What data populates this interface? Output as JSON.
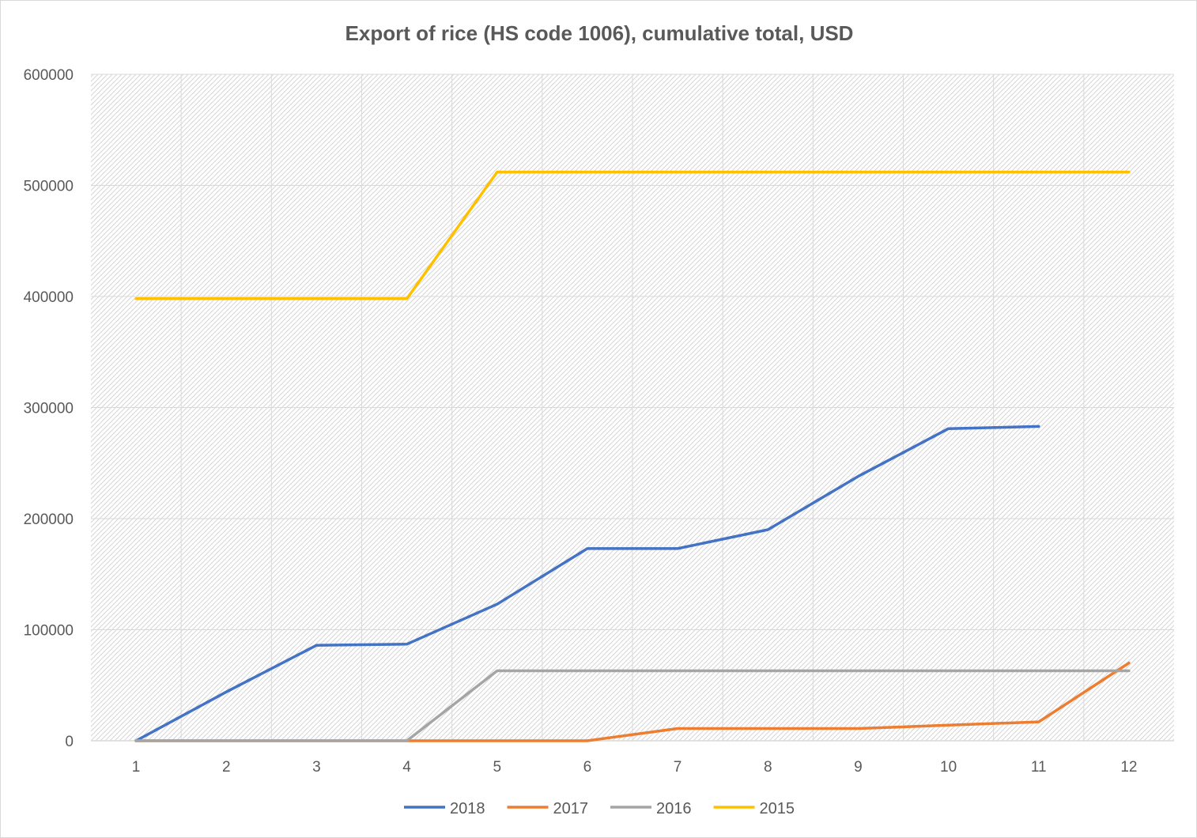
{
  "chart_data": {
    "type": "line",
    "title": "Export of rice (HS code 1006), cumulative total, USD",
    "xlabel": "",
    "ylabel": "",
    "x": [
      1,
      2,
      3,
      4,
      5,
      6,
      7,
      8,
      9,
      10,
      11,
      12
    ],
    "ylim": [
      0,
      600000
    ],
    "yticks": [
      0,
      100000,
      200000,
      300000,
      400000,
      500000,
      600000
    ],
    "grid": true,
    "legend": "bottom",
    "series": [
      {
        "name": "2018",
        "color": "#4472c4",
        "values": [
          0,
          44000,
          86000,
          87000,
          123000,
          173000,
          173000,
          190000,
          238000,
          281000,
          283000,
          null
        ]
      },
      {
        "name": "2017",
        "color": "#ed7d31",
        "values": [
          0,
          0,
          0,
          0,
          0,
          0,
          11000,
          11000,
          11000,
          14000,
          17000,
          70000
        ]
      },
      {
        "name": "2016",
        "color": "#a5a5a5",
        "values": [
          0,
          0,
          0,
          0,
          63000,
          63000,
          63000,
          63000,
          63000,
          63000,
          63000,
          63000
        ]
      },
      {
        "name": "2015",
        "color": "#ffc000",
        "values": [
          398000,
          398000,
          398000,
          398000,
          512000,
          512000,
          512000,
          512000,
          512000,
          512000,
          512000,
          512000
        ]
      }
    ]
  }
}
